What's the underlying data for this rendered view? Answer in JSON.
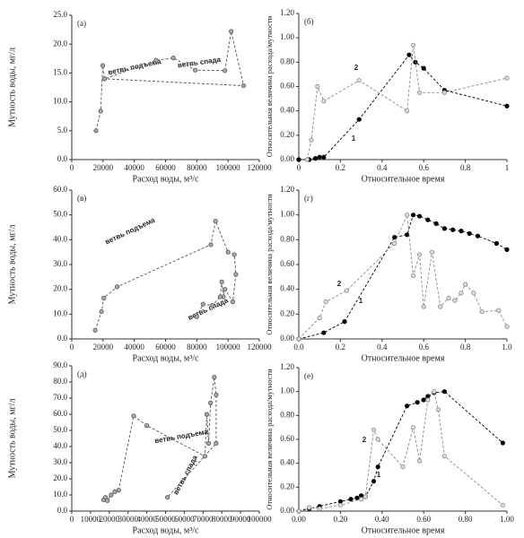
{
  "chart_data": [
    {
      "type": "line",
      "label": "(а)",
      "xlabel": "Расход воды, м³/с",
      "ylabel": "Мутность воды, мг/л",
      "xlim": [
        0,
        120000
      ],
      "xticks": [
        0,
        20000,
        40000,
        60000,
        80000,
        100000,
        120000
      ],
      "ylim": [
        0,
        25
      ],
      "yticks": [
        {
          "value": 0,
          "label": "0.0"
        },
        {
          "value": 5,
          "label": "5.0"
        },
        {
          "value": 10,
          "label": "10.0"
        },
        {
          "value": 15,
          "label": "15.0"
        },
        {
          "value": 20,
          "label": "20.0"
        },
        {
          "value": 25,
          "label": "25.0"
        }
      ],
      "annotations": [
        "ветвь подъема",
        "ветвь спада"
      ],
      "series": [
        {
          "color": "#555555",
          "x": [
            15500,
            18500,
            19800,
            21000,
            54000,
            65000,
            79000,
            98000,
            102000,
            110000,
            21000
          ],
          "values": [
            5.0,
            8.4,
            16.3,
            14.0,
            17.2,
            17.6,
            15.5,
            15.4,
            22.2,
            12.8,
            14.0
          ]
        }
      ]
    },
    {
      "type": "line",
      "label": "(б)",
      "xlabel": "Относительное время",
      "ylabel": "Относительная величина расхода/мутности",
      "xlim": [
        0,
        1
      ],
      "xticks": [
        0,
        0.2,
        0.4,
        0.6,
        0.8,
        1
      ],
      "ylim": [
        0,
        1.2
      ],
      "yticks": [
        {
          "value": 0,
          "label": "0.00"
        },
        {
          "value": 0.2,
          "label": "0.20"
        },
        {
          "value": 0.4,
          "label": "0.40"
        },
        {
          "value": 0.6,
          "label": "0.60"
        },
        {
          "value": 0.8,
          "label": "0.80"
        },
        {
          "value": 1,
          "label": "1.00"
        },
        {
          "value": 1.2,
          "label": "1.20"
        }
      ],
      "series": [
        {
          "name": "1",
          "color": "#000000",
          "x": [
            0,
            0.05,
            0.08,
            0.1,
            0.12,
            0.29,
            0.53,
            0.56,
            0.6,
            0.7,
            1.0
          ],
          "values": [
            0,
            0,
            0.01,
            0.02,
            0.02,
            0.33,
            0.86,
            0.8,
            0.75,
            0.57,
            0.44
          ]
        },
        {
          "name": "2",
          "color": "#888888",
          "x": [
            0.04,
            0.06,
            0.09,
            0.12,
            0.29,
            0.52,
            0.55,
            0.58,
            0.7,
            1.0
          ],
          "values": [
            0,
            0.16,
            0.6,
            0.48,
            0.65,
            0.4,
            0.94,
            0.55,
            0.55,
            0.67
          ]
        }
      ]
    },
    {
      "type": "line",
      "label": "(в)",
      "xlabel": "Расход воды, м³/с",
      "ylabel": "Мутность воды, мг/л",
      "xlim": [
        0,
        120000
      ],
      "xticks": [
        0,
        20000,
        40000,
        60000,
        80000,
        100000,
        120000
      ],
      "ylim": [
        0,
        60
      ],
      "yticks": [
        {
          "value": 0,
          "label": "0.0"
        },
        {
          "value": 10,
          "label": "10.0"
        },
        {
          "value": 20,
          "label": "20.0"
        },
        {
          "value": 30,
          "label": "30.0"
        },
        {
          "value": 40,
          "label": "40.0"
        },
        {
          "value": 50,
          "label": "50.0"
        },
        {
          "value": 60,
          "label": "60.0"
        }
      ],
      "annotations": [
        "ветвь подъема",
        "ветвь спада"
      ],
      "series": [
        {
          "color": "#555555",
          "x": [
            15000,
            19000,
            20500,
            29000,
            89000,
            92000,
            100000,
            104000,
            105000,
            103000,
            98000,
            97000,
            96000,
            95000,
            90000,
            84000,
            80000
          ],
          "values": [
            3.5,
            11,
            16.5,
            21,
            38,
            47.5,
            35,
            34,
            26,
            15,
            20,
            17,
            23,
            17,
            13.5,
            14,
            9
          ]
        }
      ]
    },
    {
      "type": "line",
      "label": "(г)",
      "xlabel": "Относительное время",
      "ylabel": "Относительная величина расхода/мутности",
      "xlim": [
        0,
        1
      ],
      "xticks": [
        {
          "value": 0,
          "label": "0.0"
        },
        0.2,
        0.4,
        0.6,
        0.8,
        {
          "value": 1,
          "label": "1.0"
        }
      ],
      "ylim": [
        0,
        1.2
      ],
      "yticks": [
        {
          "value": 0,
          "label": "0.00"
        },
        {
          "value": 0.2,
          "label": "0.20"
        },
        {
          "value": 0.4,
          "label": "0.40"
        },
        {
          "value": 0.6,
          "label": "0.60"
        },
        {
          "value": 0.8,
          "label": "0.80"
        },
        {
          "value": 1,
          "label": "1.00"
        },
        {
          "value": 1.2,
          "label": "1.20"
        }
      ],
      "series": [
        {
          "name": "1",
          "color": "#000000",
          "x": [
            0,
            0.12,
            0.22,
            0.46,
            0.52,
            0.55,
            0.58,
            0.62,
            0.66,
            0.7,
            0.74,
            0.78,
            0.82,
            0.86,
            0.95,
            1.0
          ],
          "values": [
            0,
            0.05,
            0.14,
            0.82,
            0.84,
            1.0,
            0.99,
            0.96,
            0.93,
            0.89,
            0.88,
            0.87,
            0.85,
            0.83,
            0.77,
            0.72
          ]
        },
        {
          "name": "2",
          "color": "#888888",
          "x": [
            0,
            0.1,
            0.13,
            0.23,
            0.46,
            0.52,
            0.55,
            0.58,
            0.6,
            0.64,
            0.68,
            0.72,
            0.75,
            0.78,
            0.8,
            0.84,
            0.88,
            0.96,
            1.0
          ],
          "values": [
            0,
            0.17,
            0.3,
            0.39,
            0.77,
            1.0,
            0.51,
            0.68,
            0.26,
            0.7,
            0.26,
            0.33,
            0.31,
            0.37,
            0.44,
            0.37,
            0.22,
            0.23,
            0.1
          ]
        }
      ]
    },
    {
      "type": "line",
      "label": "(д)",
      "xlabel": "Расход воды, м³/с",
      "ylabel": "Мутность воды, мг/л",
      "xlim": [
        0,
        100000
      ],
      "xticks": [
        0,
        10000,
        20000,
        30000,
        40000,
        50000,
        60000,
        70000,
        80000,
        90000,
        100000
      ],
      "ylim": [
        0,
        90
      ],
      "yticks": [
        {
          "value": 0,
          "label": "0.0"
        },
        {
          "value": 10,
          "label": "10.0"
        },
        {
          "value": 20,
          "label": "20.0"
        },
        {
          "value": 30,
          "label": "30.0"
        },
        {
          "value": 40,
          "label": "40.0"
        },
        {
          "value": 50,
          "label": "50.0"
        },
        {
          "value": 60,
          "label": "60.0"
        },
        {
          "value": 70,
          "label": "70.0"
        },
        {
          "value": 80,
          "label": "80.0"
        },
        {
          "value": 90,
          "label": "90.0"
        }
      ],
      "annotations": [
        "ветвь подъема",
        "ветвь спада"
      ],
      "series": [
        {
          "color": "#555555",
          "x": [
            17000,
            18000,
            19000,
            21000,
            23000,
            25000,
            33000,
            40000,
            71000,
            72000,
            73000,
            74000,
            76000,
            77000,
            77000,
            51000
          ],
          "values": [
            7,
            8.5,
            6.5,
            10,
            12,
            13,
            59,
            53,
            34,
            60,
            42,
            67,
            83,
            72,
            42,
            8.5
          ]
        }
      ]
    },
    {
      "type": "line",
      "label": "(е)",
      "xlabel": "Относительное время",
      "ylabel": "Относительная величина расхода/мутности",
      "xlim": [
        0,
        1
      ],
      "xticks": [
        {
          "value": 0,
          "label": "0.00"
        },
        {
          "value": 0.2,
          "label": "0.20"
        },
        {
          "value": 0.4,
          "label": "0.40"
        },
        {
          "value": 0.6,
          "label": "0.60"
        },
        {
          "value": 0.8,
          "label": "0.80"
        },
        {
          "value": 1,
          "label": "1.00"
        }
      ],
      "ylim": [
        0,
        1.2
      ],
      "yticks": [
        {
          "value": 0,
          "label": "0.00"
        },
        {
          "value": 0.2,
          "label": "0.20"
        },
        {
          "value": 0.4,
          "label": "0.40"
        },
        {
          "value": 0.6,
          "label": "0.60"
        },
        {
          "value": 0.8,
          "label": "0.80"
        },
        {
          "value": 1,
          "label": "1.00"
        },
        {
          "value": 1.2,
          "label": "1.20"
        }
      ],
      "series": [
        {
          "name": "1",
          "color": "#000000",
          "x": [
            0,
            0.05,
            0.1,
            0.2,
            0.25,
            0.28,
            0.3,
            0.32,
            0.36,
            0.38,
            0.52,
            0.57,
            0.6,
            0.62,
            0.65,
            0.7,
            0.98
          ],
          "values": [
            0,
            0.02,
            0.04,
            0.08,
            0.1,
            0.11,
            0.13,
            0.12,
            0.25,
            0.37,
            0.88,
            0.91,
            0.93,
            0.96,
            0.99,
            1.0,
            0.57
          ]
        },
        {
          "name": "2",
          "color": "#888888",
          "x": [
            0,
            0.05,
            0.1,
            0.2,
            0.3,
            0.32,
            0.36,
            0.38,
            0.5,
            0.55,
            0.58,
            0.62,
            0.65,
            0.67,
            0.7,
            0.98
          ],
          "values": [
            0,
            0.03,
            0.02,
            0.05,
            0.1,
            0.12,
            0.68,
            0.6,
            0.37,
            0.7,
            0.42,
            0.93,
            1.0,
            0.85,
            0.46,
            0.05
          ]
        }
      ]
    }
  ]
}
